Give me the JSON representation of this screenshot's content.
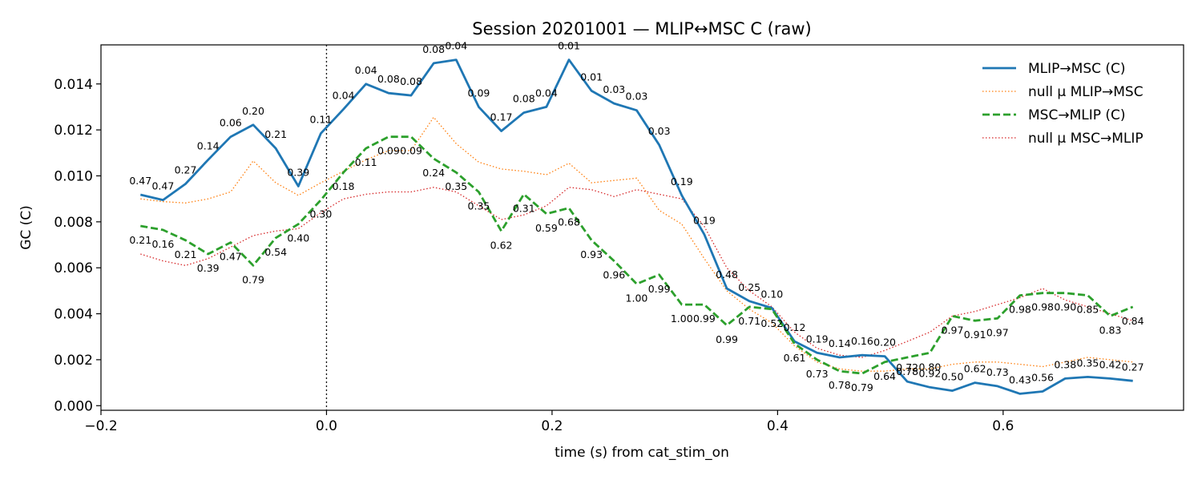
{
  "chart_data": {
    "type": "line",
    "title": "Session 20201001 — MLIP↔MSC C (raw)",
    "xlabel": "time (s) from cat_stim_on",
    "ylabel": "GC (C)",
    "xlim": [
      -0.2,
      0.76
    ],
    "ylim": [
      -0.0002,
      0.0157
    ],
    "grid": false,
    "legend_position": "top-right",
    "event_marker": {
      "x": 0.0,
      "style": "dotted",
      "color": "#000000"
    },
    "xticks": [
      -0.2,
      0.0,
      0.2,
      0.4,
      0.6
    ],
    "xtick_labels": [
      "−0.2",
      "0.0",
      "0.2",
      "0.4",
      "0.6"
    ],
    "yticks": [
      0.0,
      0.002,
      0.004,
      0.006,
      0.008,
      0.01,
      0.012,
      0.014
    ],
    "ytick_labels": [
      "0.000",
      "0.002",
      "0.004",
      "0.006",
      "0.008",
      "0.010",
      "0.012",
      "0.014"
    ],
    "x": [
      -0.165,
      -0.145,
      -0.125,
      -0.105,
      -0.085,
      -0.065,
      -0.045,
      -0.025,
      -0.005,
      0.015,
      0.035,
      0.055,
      0.075,
      0.095,
      0.115,
      0.135,
      0.155,
      0.175,
      0.195,
      0.215,
      0.235,
      0.255,
      0.275,
      0.295,
      0.315,
      0.335,
      0.355,
      0.375,
      0.395,
      0.415,
      0.435,
      0.455,
      0.475,
      0.495,
      0.515,
      0.535,
      0.555,
      0.575,
      0.595,
      0.615,
      0.635,
      0.655,
      0.675,
      0.695,
      0.715
    ],
    "series": [
      {
        "name": "MLIP→MSC (C)",
        "color": "#1f77b4",
        "style": "solid",
        "values": [
          0.00918,
          0.00895,
          0.00965,
          0.0107,
          0.0117,
          0.01222,
          0.0112,
          0.00955,
          0.01185,
          0.0129,
          0.014,
          0.0136,
          0.0135,
          0.0149,
          0.01505,
          0.013,
          0.01195,
          0.01275,
          0.013,
          0.01505,
          0.0137,
          0.01315,
          0.01285,
          0.01135,
          0.00915,
          0.00745,
          0.0051,
          0.00455,
          0.00425,
          0.0028,
          0.0023,
          0.0021,
          0.0022,
          0.00215,
          0.00105,
          0.0008,
          0.00065,
          0.001,
          0.00085,
          0.00052,
          0.00062,
          0.00118,
          0.00125,
          0.00118,
          0.00108
        ],
        "pvalue_labels": [
          "0.47",
          "0.47",
          "0.27",
          "0.14",
          "0.06",
          "0.20",
          "0.21",
          "0.39",
          "0.11",
          "0.04",
          "0.04",
          "0.08",
          "0.08",
          "0.08",
          "0.04",
          "0.09",
          "0.17",
          "0.08",
          "0.04",
          "0.01",
          "0.01",
          "0.03",
          "0.03",
          "0.03",
          "0.19",
          "0.19",
          "0.48",
          "0.25",
          "0.10",
          "0.12",
          "0.19",
          "0.14",
          "0.16",
          "0.20",
          "0.72",
          "0.92",
          "0.50",
          "0.62",
          "0.73",
          "0.43",
          "0.56",
          "0.38",
          "0.35",
          "0.42",
          "0.27"
        ]
      },
      {
        "name": "null μ MLIP→MSC",
        "color": "#ff7f0e",
        "style": "dotted",
        "values": [
          0.009,
          0.00888,
          0.00882,
          0.009,
          0.0093,
          0.01065,
          0.0097,
          0.00915,
          0.0097,
          0.0102,
          0.0107,
          0.0111,
          0.0111,
          0.01255,
          0.0114,
          0.0106,
          0.0103,
          0.0102,
          0.01005,
          0.01055,
          0.0097,
          0.0098,
          0.0099,
          0.0085,
          0.0079,
          0.0064,
          0.005,
          0.0042,
          0.0036,
          0.0026,
          0.0019,
          0.0016,
          0.0015,
          0.0015,
          0.0016,
          0.0016,
          0.0018,
          0.0019,
          0.0019,
          0.0018,
          0.0017,
          0.0019,
          0.0021,
          0.002,
          0.0019
        ]
      },
      {
        "name": "MSC→MLIP (C)",
        "color": "#2ca02c",
        "style": "dashed",
        "values": [
          0.00782,
          0.00765,
          0.0072,
          0.0066,
          0.0071,
          0.0061,
          0.0073,
          0.0079,
          0.00895,
          0.01015,
          0.0112,
          0.0117,
          0.0117,
          0.01075,
          0.01015,
          0.0093,
          0.0076,
          0.0092,
          0.00835,
          0.0086,
          0.0072,
          0.0063,
          0.0053,
          0.0057,
          0.0044,
          0.0044,
          0.0035,
          0.0043,
          0.0042,
          0.0027,
          0.002,
          0.0015,
          0.0014,
          0.0019,
          0.0021,
          0.0023,
          0.0039,
          0.0037,
          0.0038,
          0.0048,
          0.0049,
          0.0049,
          0.0048,
          0.0039,
          0.0043
        ],
        "pvalue_labels": [
          "0.21",
          "0.16",
          "0.21",
          "0.39",
          "0.47",
          "0.79",
          "0.54",
          "0.40",
          "0.30",
          "0.18",
          "0.11",
          "0.09",
          "0.09",
          "0.24",
          "0.35",
          "0.35",
          "0.62",
          "0.31",
          "0.59",
          "0.68",
          "0.93",
          "0.96",
          "1.00",
          "0.99",
          "1.00",
          "0.99",
          "0.99",
          "0.71",
          "0.52",
          "0.61",
          "0.73",
          "0.78",
          "0.79",
          "0.64",
          "0.78",
          "0.80",
          "0.97",
          "0.91",
          "0.97",
          "0.98",
          "0.98",
          "0.90",
          "0.85",
          "0.83",
          "0.84"
        ]
      },
      {
        "name": "null μ MSC→MLIP",
        "color": "#d62728",
        "style": "dotted",
        "values": [
          0.0066,
          0.0063,
          0.0061,
          0.0064,
          0.0069,
          0.0074,
          0.0076,
          0.0077,
          0.0084,
          0.009,
          0.0092,
          0.0093,
          0.0093,
          0.0095,
          0.0093,
          0.0087,
          0.0081,
          0.0083,
          0.0087,
          0.0095,
          0.0094,
          0.0091,
          0.0094,
          0.0092,
          0.009,
          0.0078,
          0.006,
          0.005,
          0.0043,
          0.0032,
          0.0025,
          0.0022,
          0.0021,
          0.0024,
          0.0028,
          0.0032,
          0.0039,
          0.0041,
          0.0044,
          0.0047,
          0.0051,
          0.0046,
          0.0043,
          0.004,
          0.0037
        ]
      }
    ]
  }
}
